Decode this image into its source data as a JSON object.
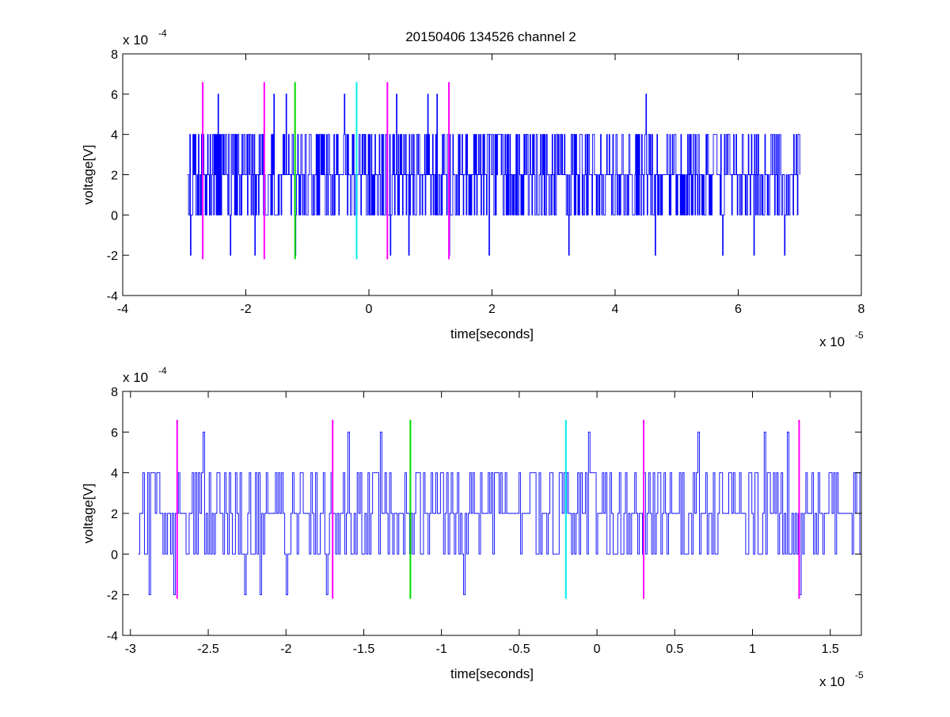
{
  "figure": {
    "title": "20150406 134526 channel 2",
    "background": "#ffffff",
    "signal_color": "#0000ff",
    "marker_colors": {
      "magenta": "#ff00ff",
      "green": "#00dd00",
      "cyan": "#00eeee"
    }
  },
  "chart_data": [
    {
      "type": "line",
      "title": "20150406 134526 channel 2",
      "xlabel": "time[seconds]",
      "ylabel": "voltage[V]",
      "x_exponent_label": "x 10",
      "x_exponent": "-5",
      "y_exponent_label": "x 10",
      "y_exponent": "-4",
      "xlim": [
        -4,
        8
      ],
      "ylim": [
        -4,
        8
      ],
      "x_ticks": [
        -4,
        -2,
        0,
        2,
        4,
        6,
        8
      ],
      "x_tick_labels": [
        "-4",
        "-2",
        "0",
        "2",
        "4",
        "6",
        "8"
      ],
      "y_ticks": [
        -4,
        -2,
        0,
        2,
        4,
        6,
        8
      ],
      "y_tick_labels": [
        "-4",
        "-2",
        "0",
        "2",
        "4",
        "6",
        "8"
      ],
      "grid": false,
      "signal": {
        "x_start": -2.95,
        "x_end": 7.0,
        "samples": 1000,
        "levels": [
          -2,
          0,
          2,
          4,
          6
        ],
        "baseline": 2,
        "peaks": [
          {
            "x": -2.45,
            "y": 6
          },
          {
            "x": -1.55,
            "y": 6
          },
          {
            "x": -1.35,
            "y": 6
          },
          {
            "x": -0.4,
            "y": 6
          },
          {
            "x": 0.45,
            "y": 6
          },
          {
            "x": 0.95,
            "y": 6
          },
          {
            "x": 1.1,
            "y": 6
          },
          {
            "x": 4.5,
            "y": 6
          }
        ],
        "troughs": [
          {
            "x": -2.9,
            "y": -2
          },
          {
            "x": -2.25,
            "y": -2
          },
          {
            "x": -1.85,
            "y": -2
          },
          {
            "x": -1.2,
            "y": -2
          },
          {
            "x": 0.35,
            "y": -2
          },
          {
            "x": 0.65,
            "y": -2
          },
          {
            "x": 1.3,
            "y": -2
          },
          {
            "x": 1.95,
            "y": -2
          },
          {
            "x": 3.25,
            "y": -2
          },
          {
            "x": 4.65,
            "y": -2
          },
          {
            "x": 5.75,
            "y": -2
          },
          {
            "x": 6.25,
            "y": -2
          },
          {
            "x": 6.75,
            "y": -2
          }
        ]
      },
      "markers": [
        {
          "x": -2.7,
          "color": "magenta",
          "y_range": [
            -2.2,
            6.6
          ]
        },
        {
          "x": -1.7,
          "color": "magenta",
          "y_range": [
            -2.2,
            6.6
          ]
        },
        {
          "x": -1.2,
          "color": "green",
          "y_range": [
            -2.2,
            6.6
          ]
        },
        {
          "x": -0.2,
          "color": "cyan",
          "y_range": [
            -2.2,
            6.6
          ]
        },
        {
          "x": 0.3,
          "color": "magenta",
          "y_range": [
            -2.2,
            6.6
          ]
        },
        {
          "x": 1.3,
          "color": "magenta",
          "y_range": [
            -2.2,
            6.6
          ]
        }
      ]
    },
    {
      "type": "line",
      "title": "",
      "xlabel": "time[seconds]",
      "ylabel": "voltage[V]",
      "x_exponent_label": "x 10",
      "x_exponent": "-5",
      "y_exponent_label": "x 10",
      "y_exponent": "-4",
      "xlim": [
        -3.05,
        1.7
      ],
      "ylim": [
        -4,
        8
      ],
      "x_ticks": [
        -3,
        -2.5,
        -2,
        -1.5,
        -1,
        -0.5,
        0,
        0.5,
        1,
        1.5
      ],
      "x_tick_labels": [
        "-3",
        "-2.5",
        "-2",
        "-1.5",
        "-1",
        "-0.5",
        "0",
        "0.5",
        "1",
        "1.5"
      ],
      "y_ticks": [
        -4,
        -2,
        0,
        2,
        4,
        6,
        8
      ],
      "y_tick_labels": [
        "-4",
        "-2",
        "0",
        "2",
        "4",
        "6",
        "8"
      ],
      "grid": false,
      "signal": {
        "x_start": -2.95,
        "x_end": 1.7,
        "samples": 470,
        "levels": [
          -2,
          0,
          2,
          4,
          6
        ],
        "baseline": 2,
        "peaks": [
          {
            "x": -2.53,
            "y": 6
          },
          {
            "x": -1.6,
            "y": 6
          },
          {
            "x": -0.05,
            "y": 6
          },
          {
            "x": 0.65,
            "y": 6
          },
          {
            "x": 1.08,
            "y": 6
          },
          {
            "x": 1.22,
            "y": 6
          },
          {
            "x": -1.39,
            "y": 6
          }
        ],
        "troughs": [
          {
            "x": -2.88,
            "y": -2
          },
          {
            "x": -2.72,
            "y": -2
          },
          {
            "x": -2.27,
            "y": -2
          },
          {
            "x": -2.17,
            "y": -2
          },
          {
            "x": -2.0,
            "y": -2
          },
          {
            "x": -1.74,
            "y": -2
          },
          {
            "x": -0.86,
            "y": -2
          },
          {
            "x": 1.3,
            "y": -2
          }
        ]
      },
      "markers": [
        {
          "x": -2.7,
          "color": "magenta",
          "y_range": [
            -2.2,
            6.6
          ]
        },
        {
          "x": -1.7,
          "color": "magenta",
          "y_range": [
            -2.2,
            6.6
          ]
        },
        {
          "x": -1.2,
          "color": "green",
          "y_range": [
            -2.2,
            6.6
          ]
        },
        {
          "x": -0.2,
          "color": "cyan",
          "y_range": [
            -2.2,
            6.6
          ]
        },
        {
          "x": 0.3,
          "color": "magenta",
          "y_range": [
            -2.2,
            6.6
          ]
        },
        {
          "x": 1.3,
          "color": "magenta",
          "y_range": [
            -2.2,
            6.6
          ]
        }
      ]
    }
  ]
}
